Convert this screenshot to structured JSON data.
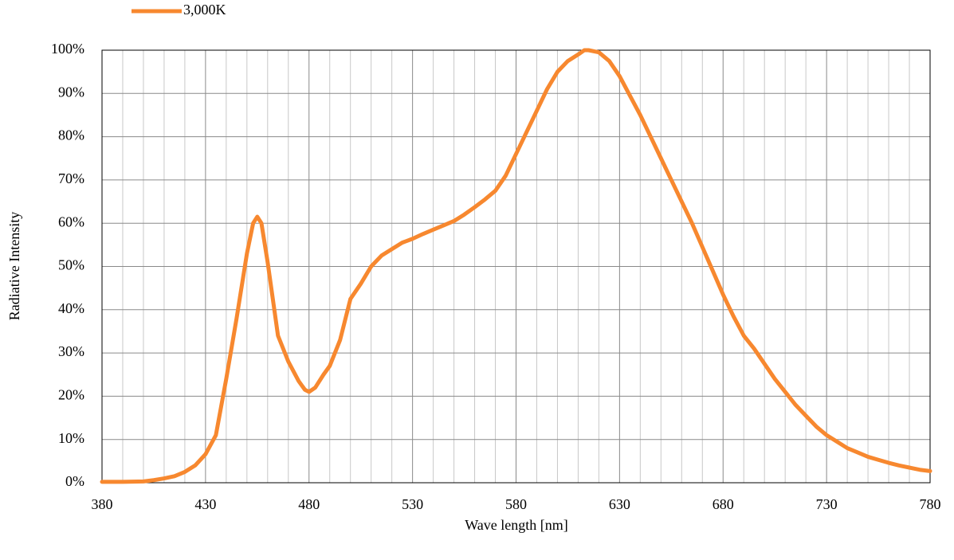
{
  "chart_data": {
    "type": "line",
    "xlabel": "Wave length [nm]",
    "ylabel": "Radiative Intensity",
    "x": [
      380,
      390,
      400,
      405,
      410,
      415,
      420,
      425,
      430,
      435,
      440,
      445,
      450,
      453,
      455,
      457,
      460,
      465,
      470,
      475,
      478,
      480,
      483,
      487,
      490,
      495,
      500,
      505,
      510,
      515,
      520,
      525,
      530,
      535,
      540,
      545,
      550,
      555,
      560,
      565,
      570,
      575,
      580,
      585,
      590,
      595,
      600,
      605,
      610,
      613,
      615,
      620,
      625,
      630,
      635,
      640,
      645,
      650,
      655,
      660,
      665,
      670,
      675,
      680,
      685,
      690,
      695,
      700,
      705,
      710,
      715,
      720,
      725,
      730,
      735,
      740,
      745,
      750,
      755,
      760,
      765,
      770,
      775,
      780
    ],
    "series": [
      {
        "name": "3,000K",
        "color": "#f7882f",
        "values": [
          0.2,
          0.2,
          0.3,
          0.6,
          1,
          1.5,
          2.5,
          4,
          6.6,
          11,
          24,
          38,
          53,
          60,
          61.5,
          60,
          51,
          34,
          28,
          23.5,
          21.5,
          21,
          22,
          25,
          27,
          33,
          42.5,
          46,
          50,
          52.5,
          54,
          55.5,
          56.4,
          57.5,
          58.5,
          59.5,
          60.5,
          62,
          63.7,
          65.5,
          67.5,
          71,
          76,
          81,
          86,
          91,
          95,
          97.5,
          99,
          100,
          100,
          99.5,
          97.5,
          94,
          89.5,
          85,
          80,
          75,
          70,
          65,
          60,
          54.5,
          49,
          43.5,
          38.5,
          34,
          31,
          27.5,
          24,
          21,
          18,
          15.5,
          13,
          11,
          9.5,
          8,
          7,
          6,
          5.3,
          4.6,
          4,
          3.5,
          3,
          2.7
        ]
      }
    ],
    "xlim": [
      380,
      780
    ],
    "xticks": [
      380,
      430,
      480,
      530,
      580,
      630,
      680,
      730,
      780
    ],
    "xminorticks": [
      390,
      400,
      410,
      420,
      440,
      450,
      460,
      470,
      490,
      500,
      510,
      520,
      540,
      550,
      560,
      570,
      590,
      600,
      610,
      620,
      640,
      650,
      660,
      670,
      690,
      700,
      710,
      720,
      740,
      750,
      760,
      770
    ],
    "ylim": [
      0,
      100
    ],
    "yticks": [
      {
        "value": 0,
        "label": "0%"
      },
      {
        "value": 10,
        "label": "10%"
      },
      {
        "value": 20,
        "label": "20%"
      },
      {
        "value": 30,
        "label": "30%"
      },
      {
        "value": 40,
        "label": "40%"
      },
      {
        "value": 50,
        "label": "50%"
      },
      {
        "value": 60,
        "label": "60%"
      },
      {
        "value": 70,
        "label": "70%"
      },
      {
        "value": 80,
        "label": "80%"
      },
      {
        "value": 90,
        "label": "90%"
      },
      {
        "value": 100,
        "label": "100%"
      }
    ],
    "grid": true,
    "legend": "top-left"
  }
}
